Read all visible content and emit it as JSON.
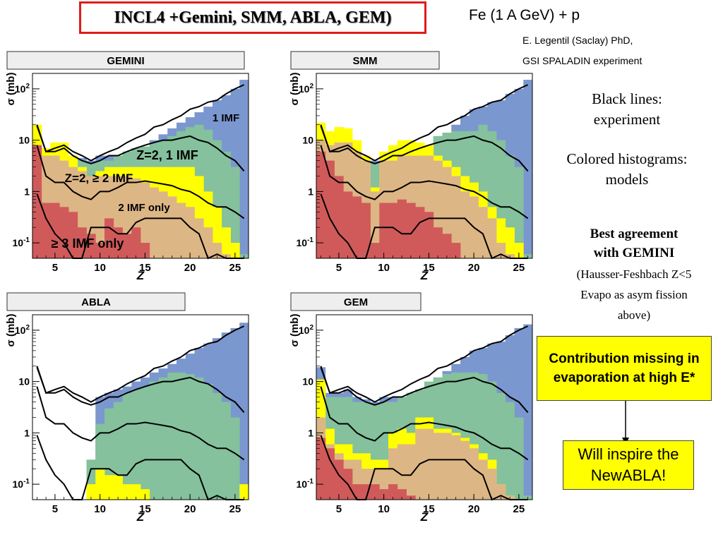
{
  "title": "INCL4 +Gemini, SMM, ABLA, GEM)",
  "reaction": "Fe (1 A GeV) + p",
  "credit_lines": [
    "E. Legentil (Saclay) PhD,",
    "GSI SPALADIN experiment"
  ],
  "notes": {
    "black_lines": [
      "Black lines:",
      "experiment"
    ],
    "colored": [
      "Colored histograms:",
      "models"
    ],
    "best_bold": [
      "Best agreement",
      "with GEMINI"
    ],
    "best_detail": [
      "(Hausser-Feshbach Z<5",
      "Evapo as asym fission",
      "above)"
    ]
  },
  "callout_missing": "Contribution missing in evaporation at high E*",
  "callout_newabla": "Will inspire the NewABLA!",
  "colors": {
    "blue": "#7b97cf",
    "green": "#84c19c",
    "yellow": "#ffff00",
    "tan": "#ddb685",
    "red": "#d05a5a",
    "title_border": "#e01b1b"
  },
  "chart_data": [
    {
      "type": "bar",
      "name": "GEMINI",
      "xlabel": "Z",
      "ylabel": "σ (mb)",
      "xticks": [
        5,
        10,
        15,
        20,
        25
      ],
      "yticks": [
        "10^-1",
        "1",
        "10",
        "10^2"
      ],
      "ylim": [
        0.05,
        200
      ],
      "xlim": [
        2.5,
        26.5
      ],
      "annotations": [
        "1 IMF",
        "Z=2, 1 IMF",
        "Z=2, ≥ 2 IMF",
        "2 IMF only",
        "≥ 3 IMF only"
      ],
      "categories": [
        3,
        4,
        5,
        6,
        7,
        8,
        9,
        10,
        11,
        12,
        13,
        14,
        15,
        16,
        17,
        18,
        19,
        20,
        21,
        22,
        23,
        24,
        25,
        26
      ],
      "series": [
        {
          "color": "blue",
          "values": [
            19,
            6,
            6,
            7,
            5,
            4.5,
            4,
            5,
            5,
            5,
            6,
            7,
            7.5,
            10,
            13,
            17,
            22,
            28,
            35,
            45,
            60,
            75,
            100,
            150
          ]
        },
        {
          "color": "green",
          "values": [
            9,
            5,
            5,
            5,
            4,
            4,
            3.5,
            4,
            4,
            5,
            6,
            7,
            7.5,
            9,
            10,
            12,
            15,
            18,
            20,
            16,
            10,
            6,
            3,
            0.06
          ]
        },
        {
          "color": "yellow",
          "values": [
            20,
            7,
            9,
            9,
            5,
            3,
            2,
            2.5,
            3,
            3,
            3,
            3,
            3,
            3,
            3,
            3,
            3,
            3,
            2,
            1,
            0.5,
            0.2,
            0.1,
            0.05
          ]
        },
        {
          "color": "tan",
          "values": [
            6,
            5,
            5,
            4,
            3,
            2.5,
            2,
            2,
            2,
            2,
            2,
            1.8,
            1.5,
            1.2,
            1,
            0.8,
            0.6,
            0.5,
            0.3,
            0.2,
            0.1,
            0.06,
            0.05,
            0.05
          ]
        },
        {
          "color": "red",
          "values": [
            8,
            0.6,
            0.6,
            0.5,
            0.4,
            0.2,
            0.15,
            0.1,
            0.3,
            0.2,
            0.15,
            0.2,
            0.1,
            0.05,
            0.05,
            0.05,
            0.05,
            0.05,
            0.05,
            0.05,
            0.05,
            0.05,
            0.05,
            0.05
          ]
        }
      ],
      "lines": [
        [
          20,
          6,
          7,
          8,
          6,
          5,
          4,
          5,
          6,
          7,
          9,
          11,
          13,
          18,
          20,
          25,
          30,
          40,
          45,
          55,
          60,
          80,
          100,
          120
        ],
        [
          19,
          6,
          6,
          7,
          5,
          4,
          3.5,
          4,
          5,
          5,
          6,
          7,
          8,
          9,
          10,
          10,
          11,
          12,
          10,
          9,
          7,
          5,
          4,
          2.5
        ],
        [
          8,
          2,
          1.5,
          1.5,
          1,
          0.8,
          0.7,
          1,
          1,
          1.2,
          1.5,
          1.5,
          1.6,
          1.5,
          1.4,
          1.3,
          1.1,
          1,
          0.8,
          0.6,
          0.5,
          0.5,
          0.4,
          0.3
        ],
        [
          0.9,
          0.3,
          0.15,
          0.1,
          0.05,
          0.05,
          0.2,
          0.2,
          0.2,
          0.15,
          0.15,
          0.25,
          0.3,
          0.3,
          0.3,
          0.3,
          0.3,
          0.2,
          0.15,
          0.04,
          0.06,
          0.04,
          0.05,
          0.05
        ]
      ]
    },
    {
      "type": "bar",
      "name": "SMM",
      "xlabel": "Z",
      "ylabel": "σ (mb)",
      "xticks": [
        5,
        10,
        15,
        20,
        25
      ],
      "yticks": [
        "10^-1",
        "1",
        "10",
        "10^2"
      ],
      "ylim": [
        0.05,
        200
      ],
      "xlim": [
        2.5,
        26.5
      ],
      "categories": [
        3,
        4,
        5,
        6,
        7,
        8,
        9,
        10,
        11,
        12,
        13,
        14,
        15,
        16,
        17,
        18,
        19,
        20,
        21,
        22,
        23,
        24,
        25,
        26
      ],
      "series": [
        {
          "color": "blue",
          "values": [
            19,
            6,
            6,
            7,
            5,
            4.5,
            4,
            5,
            5,
            5,
            6,
            7,
            7.5,
            12,
            14,
            20,
            30,
            40,
            45,
            55,
            60,
            80,
            100,
            150
          ]
        },
        {
          "color": "green",
          "values": [
            9,
            5,
            5,
            5,
            4,
            4,
            3.5,
            4,
            4,
            5,
            6,
            7,
            7.5,
            12,
            14,
            15,
            15,
            15,
            20,
            15,
            10,
            5,
            3,
            0.06
          ]
        },
        {
          "color": "yellow",
          "values": [
            22,
            15,
            18,
            17,
            10,
            5,
            1.2,
            6,
            8,
            10,
            10,
            9,
            8,
            5,
            4,
            3,
            2,
            1.5,
            1,
            0.5,
            0.3,
            0.2,
            0.1,
            0.05
          ]
        },
        {
          "color": "tan",
          "values": [
            10,
            8,
            9,
            9,
            6,
            4,
            1,
            4,
            4,
            5,
            5,
            5,
            5,
            4,
            3,
            2,
            1,
            0.8,
            0.5,
            0.3,
            0.1,
            0.06,
            0.05,
            0.05
          ]
        },
        {
          "color": "red",
          "values": [
            6,
            4,
            2,
            1,
            0.8,
            0.6,
            0.1,
            0.6,
            0.6,
            0.7,
            0.6,
            0.5,
            0.4,
            0.2,
            0.15,
            0.1,
            0.05,
            0.05,
            0.05,
            0.05,
            0.05,
            0.05,
            0.05,
            0.05
          ]
        }
      ],
      "lines": [
        [
          20,
          6,
          7,
          8,
          6,
          5,
          4,
          5,
          6,
          7,
          9,
          11,
          13,
          18,
          20,
          25,
          30,
          40,
          45,
          55,
          60,
          80,
          100,
          120
        ],
        [
          19,
          6,
          6,
          7,
          5,
          4,
          3.5,
          4,
          5,
          5,
          6,
          7,
          8,
          9,
          10,
          10,
          11,
          12,
          10,
          9,
          7,
          5,
          4,
          2.5
        ],
        [
          8,
          2,
          1.5,
          1.5,
          1,
          0.8,
          0.7,
          1,
          1,
          1.2,
          1.5,
          1.5,
          1.6,
          1.5,
          1.4,
          1.3,
          1.1,
          1,
          0.8,
          0.6,
          0.5,
          0.5,
          0.4,
          0.3
        ],
        [
          0.9,
          0.3,
          0.15,
          0.1,
          0.05,
          0.05,
          0.2,
          0.2,
          0.2,
          0.15,
          0.15,
          0.25,
          0.3,
          0.3,
          0.3,
          0.3,
          0.3,
          0.2,
          0.15,
          0.04,
          0.06,
          0.04,
          0.05,
          0.05
        ]
      ]
    },
    {
      "type": "bar",
      "name": "ABLA",
      "xlabel": "Z",
      "ylabel": "σ (mb)",
      "xticks": [
        5,
        10,
        15,
        20,
        25
      ],
      "yticks": [
        "10^-1",
        "1",
        "10",
        "10^2"
      ],
      "ylim": [
        0.05,
        200
      ],
      "xlim": [
        2.5,
        26.5
      ],
      "categories": [
        3,
        4,
        5,
        6,
        7,
        8,
        9,
        10,
        11,
        12,
        13,
        14,
        15,
        16,
        17,
        18,
        19,
        20,
        21,
        22,
        23,
        24,
        25,
        26
      ],
      "series": [
        {
          "color": "blue",
          "values": [
            0.05,
            0.05,
            0.05,
            0.05,
            0.05,
            0.05,
            0.3,
            5,
            6,
            7,
            8,
            10,
            12,
            15,
            18,
            22,
            28,
            35,
            45,
            55,
            70,
            90,
            110,
            140
          ]
        },
        {
          "color": "green",
          "values": [
            0.05,
            0.05,
            0.05,
            0.05,
            0.05,
            0.05,
            0.3,
            1.5,
            3,
            4,
            6,
            7,
            8,
            10,
            12,
            15,
            15,
            14,
            12,
            9,
            6,
            4,
            2,
            0.06
          ]
        },
        {
          "color": "yellow",
          "values": [
            0.05,
            0.05,
            0.05,
            0.05,
            0.05,
            0.05,
            0.1,
            0.2,
            0.15,
            0.15,
            0.1,
            0.1,
            0.08,
            0.05,
            0.05,
            0.05,
            0.05,
            0.05,
            0.05,
            0.05,
            0.05,
            0.05,
            0.05,
            0.1
          ]
        },
        {
          "color": "tan",
          "values": [
            0.05,
            0.05,
            0.05,
            0.05,
            0.05,
            0.05,
            0.05,
            0.05,
            0.05,
            0.05,
            0.05,
            0.05,
            0.05,
            0.05,
            0.05,
            0.05,
            0.05,
            0.05,
            0.05,
            0.05,
            0.05,
            0.05,
            0.05,
            0.05
          ]
        },
        {
          "color": "red",
          "values": [
            0.05,
            0.05,
            0.05,
            0.05,
            0.05,
            0.05,
            0.05,
            0.05,
            0.05,
            0.05,
            0.05,
            0.05,
            0.05,
            0.05,
            0.05,
            0.05,
            0.05,
            0.05,
            0.05,
            0.05,
            0.05,
            0.05,
            0.05,
            0.05
          ]
        }
      ],
      "lines": [
        [
          20,
          6,
          7,
          8,
          6,
          5,
          4,
          5,
          6,
          7,
          9,
          11,
          13,
          18,
          20,
          25,
          30,
          40,
          45,
          55,
          60,
          80,
          100,
          120
        ],
        [
          19,
          6,
          6,
          7,
          5,
          4,
          3.5,
          4,
          5,
          5,
          6,
          7,
          8,
          9,
          10,
          10,
          11,
          12,
          10,
          9,
          7,
          5,
          4,
          2.5
        ],
        [
          8,
          2,
          1.5,
          1.5,
          1,
          0.8,
          0.7,
          1,
          1,
          1.2,
          1.5,
          1.5,
          1.6,
          1.5,
          1.4,
          1.3,
          1.1,
          1,
          0.8,
          0.6,
          0.5,
          0.5,
          0.4,
          0.3
        ],
        [
          0.9,
          0.3,
          0.15,
          0.1,
          0.05,
          0.05,
          0.2,
          0.2,
          0.2,
          0.15,
          0.15,
          0.25,
          0.3,
          0.3,
          0.3,
          0.3,
          0.3,
          0.2,
          0.15,
          0.04,
          0.06,
          0.04,
          0.05,
          0.05
        ]
      ]
    },
    {
      "type": "bar",
      "name": "GEM",
      "xlabel": "Z",
      "ylabel": "σ (mb)",
      "xticks": [
        5,
        10,
        15,
        20,
        25
      ],
      "yticks": [
        "10^-1",
        "1",
        "10",
        "10^2"
      ],
      "ylim": [
        0.05,
        200
      ],
      "xlim": [
        2.5,
        26.5
      ],
      "categories": [
        3,
        4,
        5,
        6,
        7,
        8,
        9,
        10,
        11,
        12,
        13,
        14,
        15,
        16,
        17,
        18,
        19,
        20,
        21,
        22,
        23,
        24,
        25,
        26
      ],
      "series": [
        {
          "color": "blue",
          "values": [
            19,
            6,
            6,
            7,
            5,
            4.5,
            4,
            5,
            5,
            5,
            6,
            7,
            7.5,
            12,
            16,
            22,
            30,
            40,
            45,
            55,
            60,
            80,
            110,
            130
          ]
        },
        {
          "color": "green",
          "values": [
            9,
            5,
            5,
            5,
            4,
            4,
            3.5,
            4,
            4,
            5,
            6,
            7,
            10,
            12,
            14,
            15,
            15,
            15,
            14,
            10,
            6,
            4,
            2,
            0.06
          ]
        },
        {
          "color": "yellow",
          "values": [
            11,
            1.2,
            0.6,
            0.6,
            0.4,
            0.4,
            0.3,
            0.3,
            1,
            1.2,
            1,
            2,
            2,
            1.2,
            1.2,
            1,
            0.8,
            0.6,
            0.4,
            0.3,
            0.1,
            0.06,
            0.05,
            0.05
          ]
        },
        {
          "color": "tan",
          "values": [
            2,
            0.6,
            0.4,
            0.3,
            0.3,
            0.2,
            0.2,
            0.2,
            0.5,
            0.6,
            0.6,
            1.2,
            1.2,
            1,
            1,
            0.9,
            0.7,
            0.5,
            0.3,
            0.2,
            0.1,
            0.06,
            0.05,
            0.05
          ]
        },
        {
          "color": "red",
          "values": [
            0.8,
            0.5,
            0.3,
            0.2,
            0.1,
            0.1,
            0.1,
            0.08,
            0.1,
            0.08,
            0.06,
            0.05,
            0.05,
            0.05,
            0.05,
            0.05,
            0.05,
            0.05,
            0.05,
            0.05,
            0.05,
            0.05,
            0.05,
            0.05
          ]
        }
      ],
      "lines": [
        [
          20,
          6,
          7,
          8,
          6,
          5,
          4,
          5,
          6,
          7,
          9,
          11,
          13,
          18,
          20,
          25,
          30,
          40,
          45,
          55,
          60,
          80,
          100,
          120
        ],
        [
          19,
          6,
          6,
          7,
          5,
          4,
          3.5,
          4,
          5,
          5,
          6,
          7,
          8,
          9,
          10,
          10,
          11,
          12,
          10,
          9,
          7,
          5,
          4,
          2.5
        ],
        [
          8,
          2,
          1.5,
          1.5,
          1,
          0.8,
          0.7,
          1,
          1,
          1.2,
          1.5,
          1.5,
          1.6,
          1.5,
          1.4,
          1.3,
          1.1,
          1,
          0.8,
          0.6,
          0.5,
          0.5,
          0.4,
          0.3
        ],
        [
          0.9,
          0.3,
          0.15,
          0.1,
          0.05,
          0.05,
          0.2,
          0.2,
          0.2,
          0.15,
          0.15,
          0.25,
          0.3,
          0.3,
          0.3,
          0.3,
          0.3,
          0.2,
          0.15,
          0.04,
          0.06,
          0.04,
          0.05,
          0.05
        ]
      ]
    }
  ]
}
